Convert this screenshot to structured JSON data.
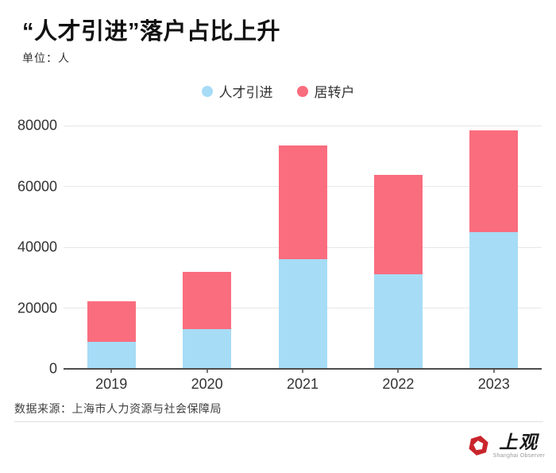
{
  "header": {
    "title": "“人才引进”落户占比上升",
    "unit_label": "单位：人"
  },
  "legend": {
    "items": [
      {
        "label": "人才引进",
        "color": "#a7dcf6"
      },
      {
        "label": "居转户",
        "color": "#f96d7e"
      }
    ]
  },
  "chart_data": {
    "type": "bar",
    "stacked": true,
    "title": "“人才引进”落户占比上升",
    "unit": "人",
    "categories": [
      "2019",
      "2020",
      "2021",
      "2022",
      "2023"
    ],
    "series": [
      {
        "name": "人才引进",
        "color": "#a7dcf6",
        "values": [
          8900,
          13000,
          36000,
          31000,
          45000
        ]
      },
      {
        "name": "居转户",
        "color": "#f96d7e",
        "values": [
          13300,
          18800,
          37500,
          32700,
          33500
        ]
      }
    ],
    "totals": [
      22200,
      31800,
      73500,
      63700,
      78500
    ],
    "ylim": [
      0,
      80000
    ],
    "yticks": [
      0,
      20000,
      40000,
      60000,
      80000
    ],
    "grid": true,
    "legend_position": "top",
    "xlabel": "",
    "ylabel": ""
  },
  "footer": {
    "source": "数据来源：上海市人力资源与社会保障局",
    "logo_text": "上观",
    "logo_subtext": "Shanghai Observer"
  },
  "colors": {
    "background": "#ffffff",
    "title_text": "#111111",
    "axis_text": "#333333",
    "gridline": "#e7e7e7",
    "axis_line": "#4d4d4d",
    "divider": "#e0e0e0",
    "logo_red": "#c9252c"
  }
}
